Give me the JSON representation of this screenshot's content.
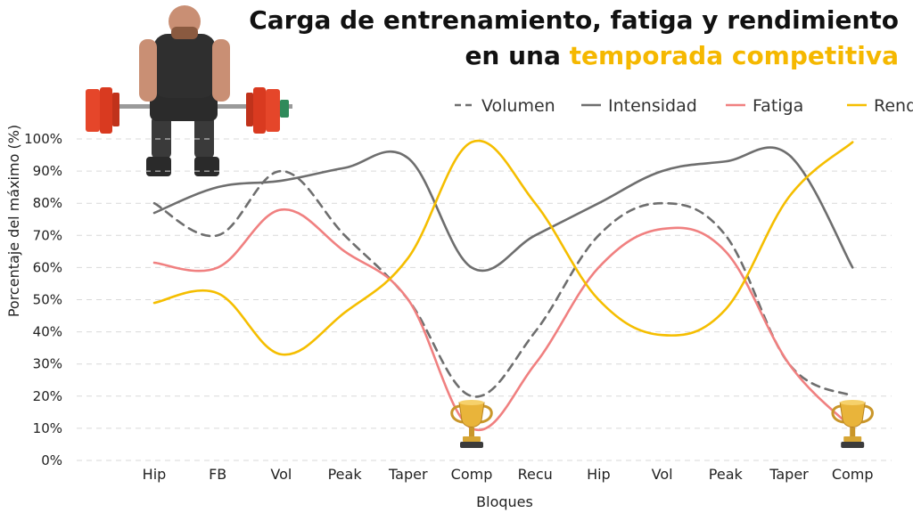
{
  "chart_data": {
    "type": "line",
    "title_line1": "Carga de entrenamiento, fatiga y rendimiento",
    "title_line2_prefix": "en una ",
    "title_line2_highlight": "temporada competitiva",
    "xlabel": "Bloques",
    "ylabel": "Porcentaje del máximo (%)",
    "ylim": [
      0,
      100
    ],
    "yticks": [
      0,
      10,
      20,
      30,
      40,
      50,
      60,
      70,
      80,
      90,
      100
    ],
    "ytick_suffix": "%",
    "categories": [
      "Hip",
      "FB",
      "Vol",
      "Peak",
      "Taper",
      "Comp",
      "Recu",
      "Hip",
      "Vol",
      "Peak",
      "Taper",
      "Comp"
    ],
    "grid": true,
    "legend_position": "top-right",
    "series": [
      {
        "name": "Volumen",
        "color": "#6e6e6e",
        "dashed": true,
        "values": [
          80,
          70,
          90,
          70,
          50,
          20,
          40,
          70,
          80,
          70,
          30,
          20
        ]
      },
      {
        "name": "Intensidad",
        "color": "#6e6e6e",
        "dashed": false,
        "values": [
          77,
          85,
          87,
          91,
          94,
          60,
          70,
          80,
          90,
          93,
          95,
          60
        ]
      },
      {
        "name": "Fatiga",
        "color": "#f08080",
        "dashed": false,
        "values": [
          61.5,
          60,
          78,
          65,
          50,
          10,
          30,
          60,
          72,
          65,
          30,
          10
        ]
      },
      {
        "name": "Rendimiento",
        "color": "#f5be00",
        "dashed": false,
        "values": [
          49,
          52,
          33,
          46,
          63,
          99,
          80,
          50,
          39,
          47,
          82,
          99
        ]
      }
    ],
    "annotations": [
      {
        "type": "trophy-icon",
        "category_index": 5
      },
      {
        "type": "trophy-icon",
        "category_index": 11
      }
    ],
    "illustration": "weightlifter-deadlift-image"
  }
}
